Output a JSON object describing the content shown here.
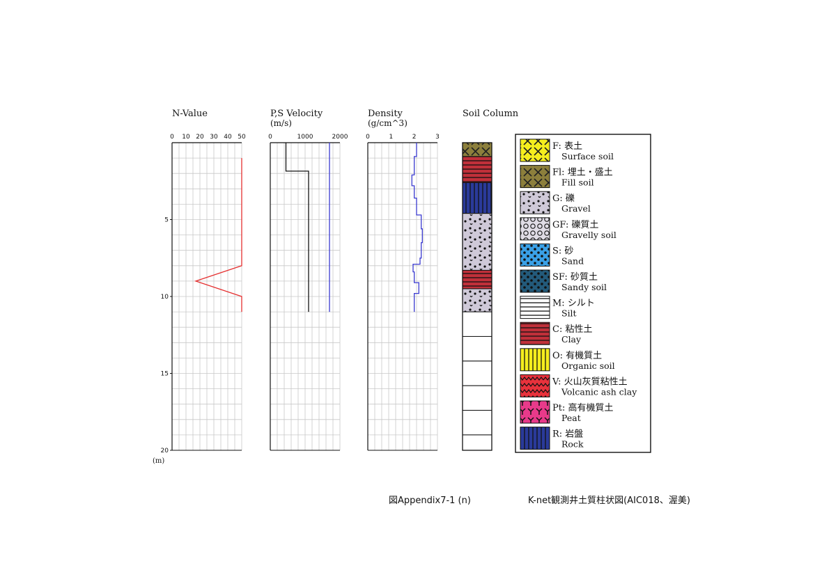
{
  "chart_data": [
    {
      "type": "line",
      "title": "N-Value",
      "xlim": [
        0,
        50
      ],
      "xticks": [
        "0",
        "10",
        "20",
        "30",
        "40",
        "50"
      ],
      "ylim": [
        0,
        20
      ],
      "yticks": [
        "5",
        "10",
        "15",
        "20"
      ],
      "y_unit": "(m)",
      "series": [
        {
          "color": "#e53030",
          "points": [
            [
              50,
              1.0
            ],
            [
              50,
              8.0
            ],
            [
              17,
              9.0
            ],
            [
              50,
              10.0
            ],
            [
              50,
              11.0
            ]
          ]
        }
      ]
    },
    {
      "type": "line",
      "title": "P,S Velocity",
      "subtitle": "(m/s)",
      "xlim": [
        0,
        2000
      ],
      "xticks": [
        "0",
        "1000",
        "2000"
      ],
      "ylim": [
        0,
        20
      ],
      "series": [
        {
          "color": "#111111",
          "points": [
            [
              450,
              0
            ],
            [
              450,
              1.85
            ],
            [
              1100,
              1.85
            ],
            [
              1100,
              11.0
            ]
          ]
        },
        {
          "color": "#3a3ad0",
          "points": [
            [
              1700,
              0
            ],
            [
              1700,
              11.0
            ]
          ]
        }
      ]
    },
    {
      "type": "line",
      "title": "Density",
      "subtitle": "(g/cm^3)",
      "xlim": [
        0,
        3
      ],
      "xticks": [
        "0",
        "1",
        "2",
        "3"
      ],
      "ylim": [
        0,
        20
      ],
      "series": [
        {
          "color": "#3a3ad0",
          "points": [
            [
              2.1,
              0
            ],
            [
              2.1,
              0.9
            ],
            [
              2.0,
              0.9
            ],
            [
              2.0,
              2.1
            ],
            [
              1.9,
              2.1
            ],
            [
              1.9,
              2.8
            ],
            [
              2.0,
              2.8
            ],
            [
              2.0,
              3.6
            ],
            [
              2.1,
              3.6
            ],
            [
              2.1,
              4.7
            ],
            [
              2.3,
              4.7
            ],
            [
              2.3,
              5.6
            ],
            [
              2.35,
              5.6
            ],
            [
              2.35,
              6.5
            ],
            [
              2.3,
              6.5
            ],
            [
              2.3,
              7.5
            ],
            [
              2.25,
              7.5
            ],
            [
              2.25,
              7.9
            ],
            [
              1.95,
              7.9
            ],
            [
              1.95,
              8.4
            ],
            [
              2.0,
              8.4
            ],
            [
              2.0,
              9.1
            ],
            [
              2.2,
              9.1
            ],
            [
              2.2,
              9.8
            ],
            [
              2.0,
              9.8
            ],
            [
              2.0,
              11.0
            ]
          ]
        }
      ]
    }
  ],
  "soil_column": {
    "title": "Soil Column",
    "layers": [
      {
        "type": "Fl",
        "top": 0,
        "bottom": 0.9
      },
      {
        "type": "C",
        "top": 0.9,
        "bottom": 2.6
      },
      {
        "type": "R",
        "top": 2.6,
        "bottom": 4.6
      },
      {
        "type": "G",
        "top": 4.6,
        "bottom": 8.3
      },
      {
        "type": "C",
        "top": 8.3,
        "bottom": 9.5
      },
      {
        "type": "G",
        "top": 9.5,
        "bottom": 11.0
      }
    ],
    "empty_row_bounds": [
      11.0,
      12.6,
      14.2,
      15.8,
      17.4,
      19.0,
      20.0
    ]
  },
  "legend": [
    {
      "code": "F",
      "label": "F: 表土",
      "en": "Surface soil",
      "pattern": "cross",
      "color": "#f5ee1e"
    },
    {
      "code": "Fl",
      "label": "Fl: 埋土・盛土",
      "en": "Fill soil",
      "pattern": "cross",
      "color": "#8c7f3c"
    },
    {
      "code": "G",
      "label": "G: 礫",
      "en": "Gravel",
      "pattern": "gravel",
      "color": "#cfc9d8"
    },
    {
      "code": "GF",
      "label": "GF: 礫質土",
      "en": "Gravelly soil",
      "pattern": "circles",
      "color": "#e0dce6"
    },
    {
      "code": "S",
      "label": "S: 砂",
      "en": "Sand",
      "pattern": "dots",
      "color": "#3aa0e6"
    },
    {
      "code": "SF",
      "label": "SF: 砂質土",
      "en": "Sandy soil",
      "pattern": "dots",
      "color": "#235a7a"
    },
    {
      "code": "M",
      "label": "M: シルト",
      "en": "Silt",
      "pattern": "hlines",
      "color": "#ffffff"
    },
    {
      "code": "C",
      "label": "C: 粘性土",
      "en": "Clay",
      "pattern": "hlines",
      "color": "#c0303a"
    },
    {
      "code": "O",
      "label": "O: 有機質土",
      "en": "Organic soil",
      "pattern": "vlines",
      "color": "#f5ee1e"
    },
    {
      "code": "V",
      "label": "V: 火山灰質粘性土",
      "en": "Volcanic ash clay",
      "pattern": "zigzag",
      "color": "#e8323c"
    },
    {
      "code": "Pt",
      "label": "Pt: 高有機質土",
      "en": "Peat",
      "pattern": "peat",
      "color": "#e83a8a"
    },
    {
      "code": "R",
      "label": "R: 岩盤",
      "en": "Rock",
      "pattern": "vlines",
      "color": "#2a3a9a"
    }
  ],
  "captions": {
    "figure_no": "図Appendix7-1 (n)",
    "description": "K-net観測井土質柱状図(AIC018、渥美)"
  }
}
